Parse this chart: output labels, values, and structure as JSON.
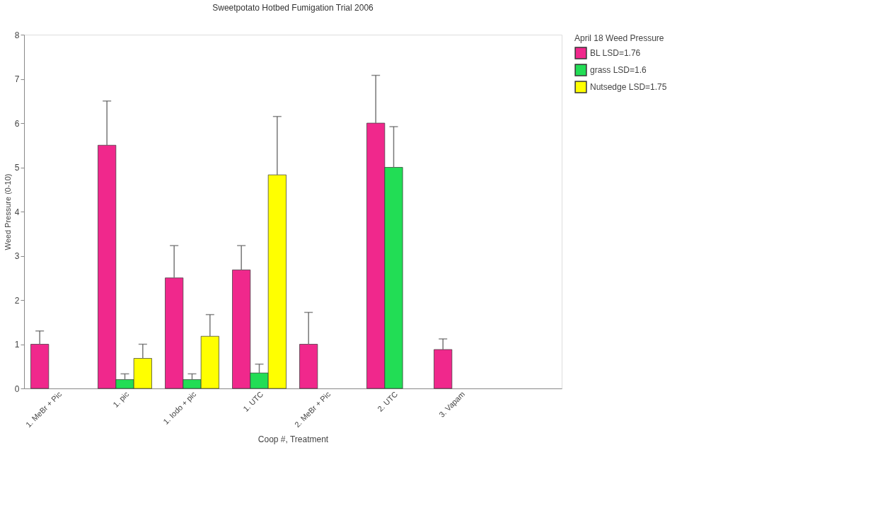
{
  "chart_data": {
    "type": "bar",
    "title": "Sweetpotato Hotbed Fumigation Trial 2006",
    "xlabel": "Coop #, Treatment",
    "ylabel": "Weed Pressure (0-10)",
    "legend_title": "April 18 Weed Pressure",
    "categories": [
      "1. MeBr + Pic",
      "1. pic",
      "1. Iodo + pic",
      "1. UTC",
      "2. MeBr + Pic",
      "2. UTC",
      "3. Vapam",
      null
    ],
    "series": [
      {
        "name": "BL LSD=1.76",
        "color": "#f0288c",
        "values": [
          1.0,
          5.5,
          2.5,
          2.68,
          1.0,
          6.0,
          0.88,
          null
        ],
        "errors": [
          [
            1.0,
            1.3
          ],
          [
            5.5,
            6.5
          ],
          [
            2.5,
            3.23
          ],
          [
            2.68,
            3.23
          ],
          [
            1.0,
            1.72
          ],
          [
            6.0,
            7.08
          ],
          [
            0.88,
            1.12
          ],
          null
        ]
      },
      {
        "name": "grass LSD=1.6",
        "color": "#22dd55",
        "values": [
          null,
          0.2,
          0.2,
          0.35,
          null,
          5.0,
          null,
          null
        ],
        "errors": [
          null,
          [
            0.2,
            0.33
          ],
          [
            0.2,
            0.33
          ],
          [
            0.35,
            0.55
          ],
          null,
          [
            5.0,
            5.92
          ],
          null,
          null
        ]
      },
      {
        "name": "Nutsedge LSD=1.75",
        "color": "#ffff00",
        "values": [
          null,
          0.68,
          1.18,
          4.83,
          null,
          null,
          null,
          null
        ],
        "errors": [
          null,
          [
            0.68,
            1.0
          ],
          [
            1.18,
            1.67
          ],
          [
            4.83,
            6.15
          ],
          null,
          null,
          null,
          null
        ]
      }
    ],
    "ylim": [
      0,
      8
    ],
    "yticks": [
      0,
      1,
      2,
      3,
      4,
      5,
      6,
      7,
      8
    ],
    "grid": false,
    "legend": "top right"
  }
}
